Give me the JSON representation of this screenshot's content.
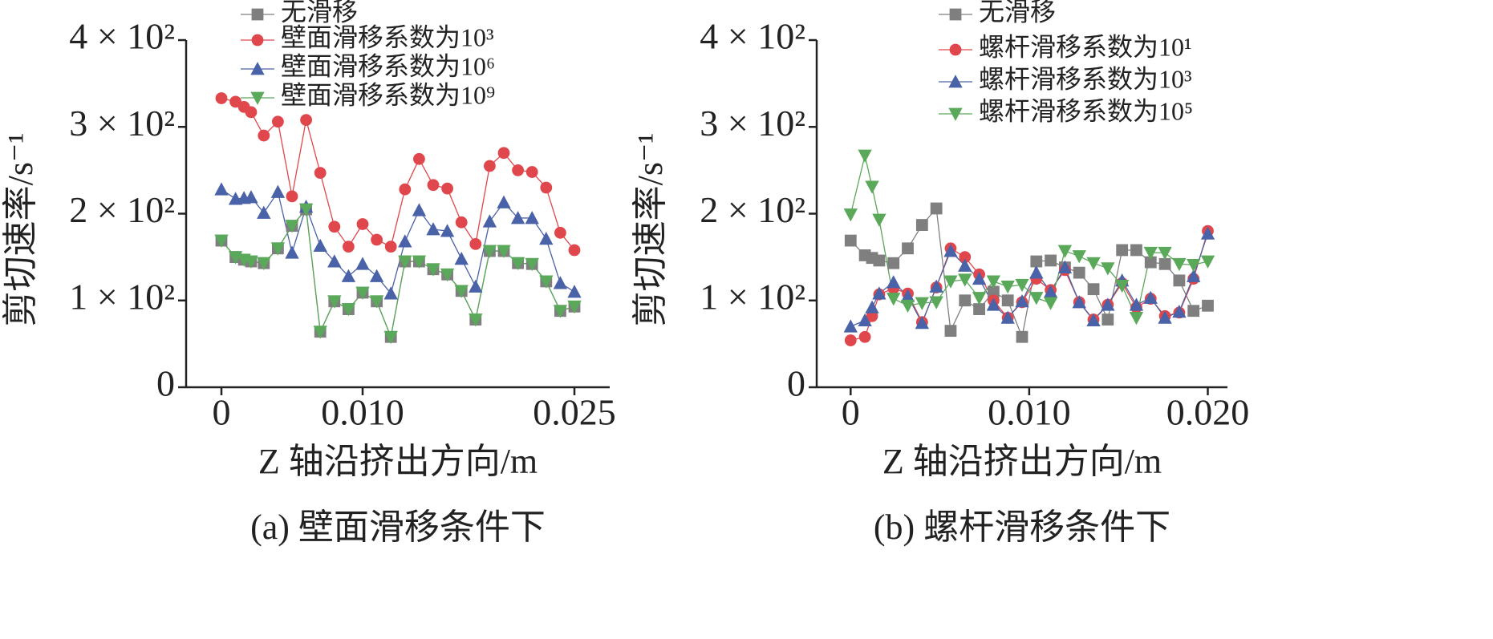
{
  "chart_data": [
    {
      "type": "line",
      "caption": "(a) 壁面滑移条件下",
      "xlabel": "Z 轴沿挤出方向/m",
      "ylabel": "剪切速率/s⁻¹",
      "x": [
        0,
        0.001,
        0.0016,
        0.0021,
        0.003,
        0.004,
        0.005,
        0.006,
        0.007,
        0.008,
        0.009,
        0.01,
        0.011,
        0.012,
        0.013,
        0.014,
        0.015,
        0.016,
        0.017,
        0.018,
        0.019,
        0.02,
        0.021,
        0.022,
        0.023,
        0.024,
        0.025
      ],
      "xlim": [
        -0.0025,
        0.0275
      ],
      "xticks": [
        0,
        {
          "value": 0.01,
          "label": "0.010"
        },
        0.025
      ],
      "ylim": [
        0,
        400
      ],
      "yticks": [
        0,
        {
          "value": 100,
          "label": "1 × 10²"
        },
        {
          "value": 200,
          "label": "2 × 10²"
        },
        {
          "value": 300,
          "label": "3 × 10²"
        },
        {
          "value": 400,
          "label": "4 × 10²"
        }
      ],
      "series": [
        {
          "name": "无滑移",
          "color": "#7f7f7f",
          "marker": "square",
          "values": [
            169,
            150,
            147,
            145,
            143,
            160,
            186,
            205,
            64,
            99,
            90,
            109,
            99,
            58,
            145,
            145,
            136,
            130,
            111,
            78,
            157,
            157,
            143,
            142,
            122,
            88,
            93
          ]
        },
        {
          "name": "壁面滑移系数为10³",
          "color": "#e0474c",
          "marker": "circle",
          "values": [
            333,
            329,
            323,
            317,
            290,
            306,
            220,
            308,
            247,
            185,
            162,
            188,
            170,
            162,
            228,
            263,
            233,
            229,
            190,
            165,
            255,
            270,
            250,
            248,
            230,
            178,
            158
          ]
        },
        {
          "name": "壁面滑移系数为10⁶",
          "color": "#4a63a8",
          "marker": "triangle-up",
          "values": [
            228,
            217,
            218,
            219,
            201,
            225,
            155,
            208,
            163,
            145,
            128,
            142,
            128,
            108,
            168,
            204,
            182,
            180,
            148,
            116,
            191,
            213,
            195,
            195,
            171,
            120,
            110
          ]
        },
        {
          "name": "壁面滑移系数为10⁹",
          "color": "#5aa85a",
          "marker": "triangle-down",
          "values": [
            169,
            150,
            147,
            145,
            143,
            160,
            186,
            205,
            64,
            99,
            90,
            109,
            99,
            58,
            145,
            145,
            136,
            130,
            111,
            78,
            157,
            157,
            143,
            142,
            122,
            88,
            93
          ]
        }
      ]
    },
    {
      "type": "line",
      "caption": "(b) 螺杆滑移条件下",
      "xlabel": "Z 轴沿挤出方向/m",
      "ylabel": "剪切速率/s⁻¹",
      "x": [
        0,
        0.0008,
        0.0012,
        0.0016,
        0.0024,
        0.0032,
        0.004,
        0.0048,
        0.0056,
        0.0064,
        0.0072,
        0.008,
        0.0088,
        0.0096,
        0.0104,
        0.0112,
        0.012,
        0.0128,
        0.0136,
        0.0144,
        0.0152,
        0.016,
        0.0168,
        0.0176,
        0.0184,
        0.0192,
        0.02
      ],
      "xlim": [
        -0.0019,
        0.0211
      ],
      "xticks": [
        0,
        {
          "value": 0.01,
          "label": "0.010"
        },
        {
          "value": 0.02,
          "label": "0.020"
        }
      ],
      "ylim": [
        0,
        400
      ],
      "yticks": [
        0,
        {
          "value": 100,
          "label": "1 × 10²"
        },
        {
          "value": 200,
          "label": "2 × 10²"
        },
        {
          "value": 300,
          "label": "3 × 10²"
        },
        {
          "value": 400,
          "label": "4 × 10²"
        }
      ],
      "series": [
        {
          "name": "无滑移",
          "color": "#7f7f7f",
          "marker": "square",
          "values": [
            169,
            152,
            149,
            146,
            143,
            160,
            187,
            206,
            65,
            100,
            90,
            110,
            100,
            58,
            145,
            146,
            138,
            132,
            113,
            78,
            158,
            158,
            144,
            142,
            123,
            88,
            94
          ]
        },
        {
          "name": "螺杆滑移系数为10¹",
          "color": "#e0474c",
          "marker": "circle",
          "values": [
            54,
            58,
            82,
            107,
            114,
            108,
            75,
            115,
            160,
            150,
            130,
            100,
            80,
            98,
            125,
            112,
            135,
            98,
            78,
            95,
            120,
            92,
            102,
            82,
            86,
            125,
            180
          ]
        },
        {
          "name": "螺杆滑移系数为10³",
          "color": "#4a63a8",
          "marker": "triangle-up",
          "values": [
            70,
            77,
            92,
            108,
            121,
            105,
            74,
            116,
            157,
            140,
            125,
            95,
            80,
            99,
            132,
            110,
            138,
            98,
            77,
            95,
            123,
            95,
            103,
            80,
            87,
            128,
            177
          ]
        },
        {
          "name": "螺杆滑移系数为10⁵",
          "color": "#5aa85a",
          "marker": "triangle-down",
          "values": [
            199,
            267,
            231,
            193,
            102,
            94,
            97,
            98,
            122,
            124,
            103,
            122,
            116,
            118,
            103,
            97,
            157,
            151,
            143,
            137,
            117,
            80,
            155,
            155,
            142,
            141,
            145
          ]
        }
      ]
    }
  ]
}
